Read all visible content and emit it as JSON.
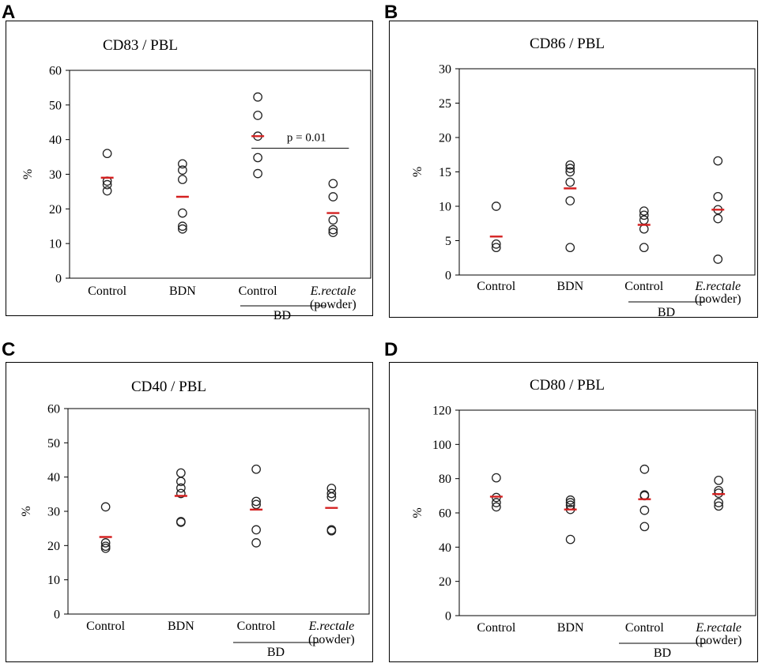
{
  "chart_data": [
    {
      "type": "scatter",
      "panel_label": "A",
      "title": "CD83 / PBL",
      "ylabel": "%",
      "ylim": [
        0,
        60
      ],
      "yticks": [
        "0",
        "10",
        "20",
        "30",
        "40",
        "50",
        "60"
      ],
      "category_labels": [
        {
          "main": "Control"
        },
        {
          "main": "BDN"
        },
        {
          "main": "Control"
        },
        {
          "main": "E.rectale",
          "main_italic": true,
          "sub": "(powder)"
        }
      ],
      "group_label": "BD",
      "points": [
        [
          36,
          28,
          27,
          25.2
        ],
        [
          33,
          31.2,
          28.5,
          18.8,
          15,
          14.2
        ],
        [
          52.3,
          47,
          41,
          34.8,
          30.2
        ],
        [
          27.3,
          23.5,
          16.8,
          14,
          13.2
        ]
      ],
      "means": [
        29,
        23.5,
        41,
        18.8
      ],
      "annotation": {
        "text": "p = 0.01",
        "from_category": 2,
        "to_category": 3,
        "y": 37.5
      }
    },
    {
      "type": "scatter",
      "panel_label": "B",
      "title": "CD86 / PBL",
      "ylabel": "%",
      "ylim": [
        0,
        30
      ],
      "yticks": [
        "0",
        "5",
        "10",
        "15",
        "20",
        "25",
        "30"
      ],
      "category_labels": [
        {
          "main": "Control"
        },
        {
          "main": "BDN"
        },
        {
          "main": "Control"
        },
        {
          "main": "E.rectale",
          "main_italic": true,
          "sub": "(powder)"
        }
      ],
      "group_label": "BD",
      "points": [
        [
          10,
          4.5,
          4
        ],
        [
          16,
          15.5,
          15,
          13.5,
          10.8,
          4
        ],
        [
          9.3,
          8.7,
          8,
          6.7,
          4
        ],
        [
          16.6,
          11.4,
          9.5,
          8.2,
          2.3
        ]
      ],
      "means": [
        5.6,
        12.6,
        7.3,
        9.5
      ]
    },
    {
      "type": "scatter",
      "panel_label": "C",
      "title": "CD40 / PBL",
      "ylabel": "%",
      "ylim": [
        0,
        60
      ],
      "yticks": [
        "0",
        "10",
        "20",
        "30",
        "40",
        "50",
        "60"
      ],
      "category_labels": [
        {
          "main": "Control"
        },
        {
          "main": "BDN"
        },
        {
          "main": "Control"
        },
        {
          "main": "E.rectale",
          "main_italic": true,
          "sub": "(powder)"
        }
      ],
      "group_label": "BD",
      "points": [
        [
          31.3,
          20.8,
          19.8,
          19.2
        ],
        [
          41.2,
          38.7,
          36.8,
          35.2,
          27,
          26.8
        ],
        [
          42.3,
          32.9,
          32,
          24.6,
          20.8
        ],
        [
          36.7,
          35.2,
          34.2,
          24.6,
          24.3
        ]
      ],
      "means": [
        22.5,
        34.5,
        30.5,
        31
      ]
    },
    {
      "type": "scatter",
      "panel_label": "D",
      "title": "CD80 / PBL",
      "ylabel": "%",
      "ylim": [
        0,
        120
      ],
      "yticks": [
        "0",
        "20",
        "40",
        "60",
        "80",
        "100",
        "120"
      ],
      "category_labels": [
        {
          "main": "Control"
        },
        {
          "main": "BDN"
        },
        {
          "main": "Control"
        },
        {
          "main": "E.rectale",
          "main_italic": true,
          "sub": "(powder)"
        }
      ],
      "group_label": "BD",
      "points": [
        [
          80.5,
          69,
          66,
          63.5
        ],
        [
          67.5,
          66,
          64.5,
          62,
          44.5
        ],
        [
          85.5,
          70.5,
          70,
          61.5,
          52
        ],
        [
          79,
          73,
          71.5,
          66,
          64
        ]
      ],
      "means": [
        69.5,
        62,
        68,
        71
      ]
    }
  ],
  "colors": {
    "mean_line": "#d42020",
    "axis": "#000000",
    "marker_stroke": "#222222"
  }
}
